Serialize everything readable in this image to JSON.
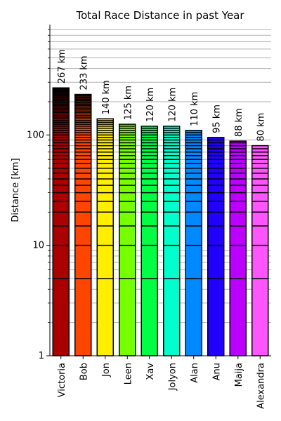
{
  "chart_data": {
    "type": "bar",
    "title": "Total Race Distance in past Year",
    "xlabel": "",
    "ylabel": "Distance [km]",
    "yscale": "log",
    "ylim": [
      1,
      1000
    ],
    "y_ticks": [
      {
        "value": 1,
        "label": "1"
      },
      {
        "value": 10,
        "label": "10"
      },
      {
        "value": 100,
        "label": "100"
      }
    ],
    "grid": "horizontal lines",
    "categories": [
      "Victoria",
      "Bob",
      "Jon",
      "Leen",
      "Xav",
      "Jolyon",
      "Alan",
      "Anu",
      "Maija",
      "Alexandra"
    ],
    "values": [
      267,
      233,
      140,
      125,
      120,
      120,
      110,
      95,
      88,
      80
    ],
    "data_labels": [
      "267 km",
      "233 km",
      "140 km",
      "125 km",
      "120 km",
      "120 km",
      "110 km",
      "95 km",
      "88 km",
      "80 km"
    ],
    "colors": [
      "#aa0000",
      "#ff4500",
      "#ffee00",
      "#77ff00",
      "#00ff44",
      "#00ffcc",
      "#0088ff",
      "#2200ff",
      "#bb00ff",
      "#ff55ff"
    ],
    "bar_stripe_color": "#000000"
  }
}
